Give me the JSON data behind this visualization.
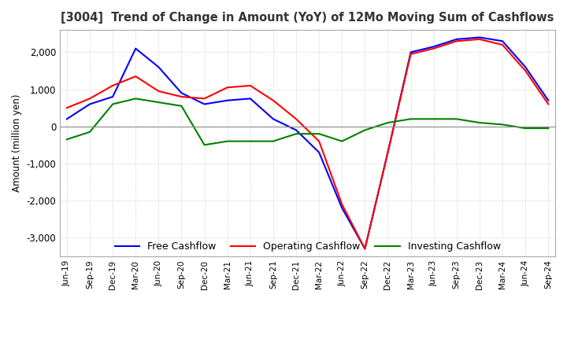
{
  "title": "[3004]  Trend of Change in Amount (YoY) of 12Mo Moving Sum of Cashflows",
  "ylabel": "Amount (million yen)",
  "background_color": "#ffffff",
  "grid_color": "#cccccc",
  "x_labels": [
    "Jun-19",
    "Sep-19",
    "Dec-19",
    "Mar-20",
    "Jun-20",
    "Sep-20",
    "Dec-20",
    "Mar-21",
    "Jun-21",
    "Sep-21",
    "Dec-21",
    "Mar-22",
    "Jun-22",
    "Sep-22",
    "Dec-22",
    "Mar-23",
    "Jun-23",
    "Sep-23",
    "Dec-23",
    "Mar-24",
    "Jun-24",
    "Sep-24"
  ],
  "operating": [
    500,
    750,
    1100,
    1350,
    950,
    800,
    750,
    1050,
    1100,
    700,
    200,
    -400,
    -2100,
    -3300,
    -700,
    1950,
    2100,
    2300,
    2350,
    2200,
    1500,
    600
  ],
  "investing": [
    -350,
    -150,
    600,
    750,
    650,
    550,
    -500,
    -400,
    -400,
    -400,
    -200,
    -200,
    -400,
    -100,
    100,
    200,
    200,
    200,
    100,
    50,
    -50,
    -50
  ],
  "free": [
    200,
    600,
    800,
    2100,
    1600,
    900,
    600,
    700,
    750,
    200,
    -100,
    -700,
    -2200,
    -3300,
    -700,
    2000,
    2150,
    2350,
    2400,
    2300,
    1600,
    700
  ],
  "ylim": [
    -3500,
    2600
  ],
  "yticks": [
    -3000,
    -2000,
    -1000,
    0,
    1000,
    2000
  ],
  "line_colors": {
    "operating": "#ff0000",
    "investing": "#008000",
    "free": "#0000ff"
  },
  "legend_labels": {
    "operating": "Operating Cashflow",
    "investing": "Investing Cashflow",
    "free": "Free Cashflow"
  }
}
